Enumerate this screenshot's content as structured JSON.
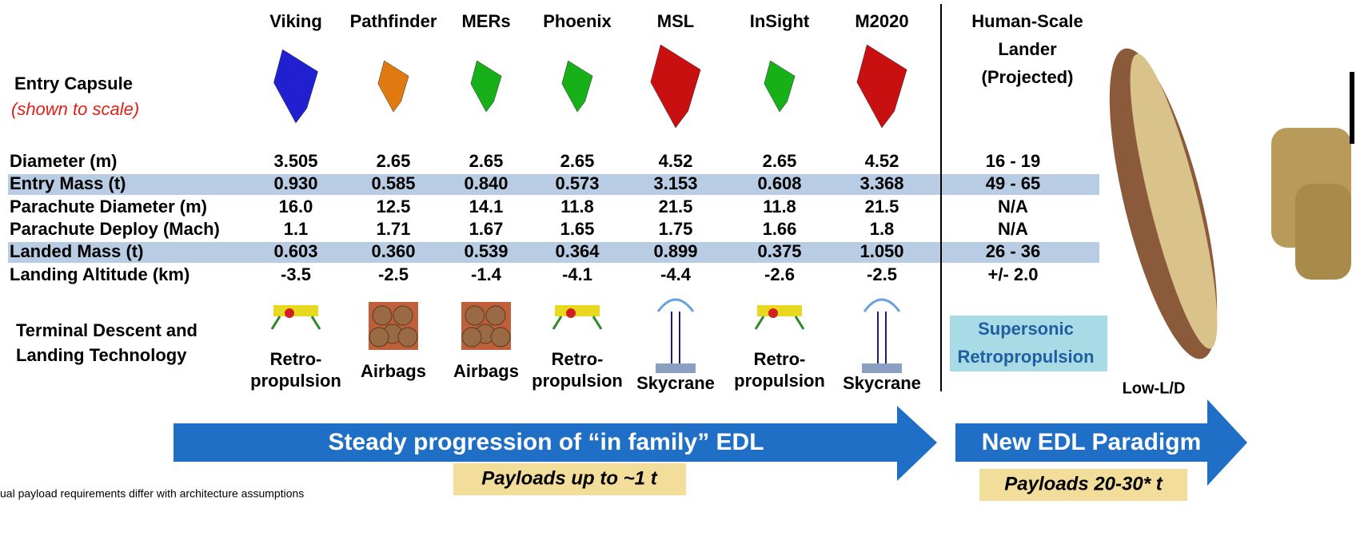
{
  "header": {
    "entry_capsule": "Entry Capsule",
    "scale_note": "(shown to scale)"
  },
  "missions": [
    "Viking",
    "Pathfinder",
    "MERs",
    "Phoenix",
    "MSL",
    "InSight",
    "M2020"
  ],
  "projected": {
    "title_lines": [
      "Human-Scale",
      "Lander",
      "(Projected)"
    ]
  },
  "table": {
    "rows": [
      {
        "label": "Diameter (m)",
        "values": [
          "3.505",
          "2.65",
          "2.65",
          "2.65",
          "4.52",
          "2.65",
          "4.52",
          "16 - 19"
        ]
      },
      {
        "label": "Entry Mass (t)",
        "values": [
          "0.930",
          "0.585",
          "0.840",
          "0.573",
          "3.153",
          "0.608",
          "3.368",
          "49 - 65"
        ]
      },
      {
        "label": "Parachute Diameter (m)",
        "values": [
          "16.0",
          "12.5",
          "14.1",
          "11.8",
          "21.5",
          "11.8",
          "21.5",
          "N/A"
        ]
      },
      {
        "label": "Parachute Deploy (Mach)",
        "values": [
          "1.1",
          "1.71",
          "1.67",
          "1.65",
          "1.75",
          "1.66",
          "1.8",
          "N/A"
        ]
      },
      {
        "label": "Landed Mass (t)",
        "values": [
          "0.603",
          "0.360",
          "0.539",
          "0.364",
          "0.899",
          "0.375",
          "1.050",
          "26 - 36"
        ]
      },
      {
        "label": "Landing Altitude (km)",
        "values": [
          "-3.5",
          "-2.5",
          "-1.4",
          "-4.1",
          "-4.4",
          "-2.6",
          "-2.5",
          "+/- 2.0"
        ]
      }
    ]
  },
  "terminal": {
    "label_lines": [
      "Terminal Descent and",
      "Landing Technology"
    ],
    "technologies": [
      [
        "Retro-",
        "propulsion"
      ],
      [
        "Airbags"
      ],
      [
        "Airbags"
      ],
      [
        "Retro-",
        "propulsion"
      ],
      [
        "Skycrane"
      ],
      [
        "Retro-",
        "propulsion"
      ],
      [
        "Skycrane"
      ]
    ],
    "projected": [
      "Supersonic",
      "Retropropulsion"
    ]
  },
  "low_ld": "Low-L/D",
  "arrows": [
    {
      "text": "Steady progression of “in family” EDL",
      "payload": "Payloads up to ~1 t"
    },
    {
      "text": "New EDL Paradigm",
      "payload": "Payloads 20-30* t"
    }
  ],
  "footnote": "ual payload requirements differ with architecture assumptions"
}
